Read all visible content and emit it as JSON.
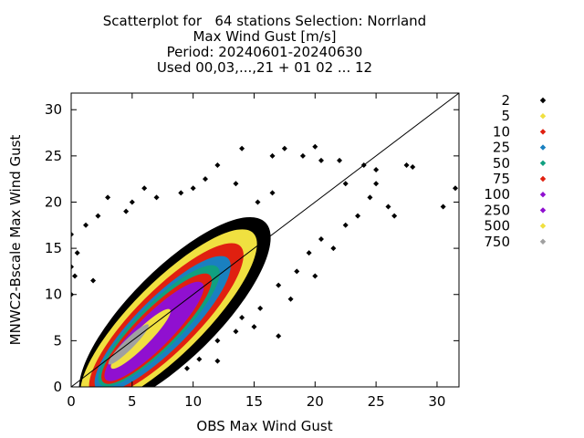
{
  "chart_data": {
    "type": "scatter",
    "title_lines": [
      "Scatterplot for   64 stations Selection: Norrland",
      "Max Wind Gust [m/s]",
      "Period: 20240601-20240630",
      "Used 00,03,...,21 + 01 02 ... 12"
    ],
    "xlabel": "OBS Max Wind Gust",
    "ylabel": "MNWC2-Bscale Max Wind Gust",
    "xlim": [
      0,
      31.8
    ],
    "ylim": [
      0,
      31.8
    ],
    "xticks": [
      "0",
      "5",
      "10",
      "15",
      "20",
      "25",
      "30"
    ],
    "yticks": [
      "0",
      "5",
      "10",
      "15",
      "20",
      "25",
      "30"
    ],
    "diagonal_line": true,
    "grid": false,
    "legend_position": "right",
    "legend": [
      {
        "label": "2",
        "color": "#000000"
      },
      {
        "label": "5",
        "color": "#f0e040"
      },
      {
        "label": "10",
        "color": "#e02010"
      },
      {
        "label": "25",
        "color": "#1a80c0"
      },
      {
        "label": "50",
        "color": "#10a080"
      },
      {
        "label": "75",
        "color": "#e02010"
      },
      {
        "label": "100",
        "color": "#9010d0"
      },
      {
        "label": "250",
        "color": "#9010d0"
      },
      {
        "label": "500",
        "color": "#f0e040"
      },
      {
        "label": "750",
        "color": "#a0a0a0"
      }
    ],
    "density_layers": [
      {
        "class": "2",
        "center": [
          8.5,
          8.0
        ],
        "half_axes": [
          10.5,
          4.8
        ],
        "angle": 45
      },
      {
        "class": "5",
        "center": [
          8.0,
          7.5
        ],
        "half_axes": [
          9.8,
          3.9
        ],
        "angle": 45
      },
      {
        "class": "10",
        "center": [
          7.8,
          7.2
        ],
        "half_axes": [
          8.6,
          3.3
        ],
        "angle": 45
      },
      {
        "class": "25",
        "center": [
          7.5,
          6.8
        ],
        "half_axes": [
          7.6,
          2.8
        ],
        "angle": 45
      },
      {
        "class": "50",
        "center": [
          7.2,
          6.6
        ],
        "half_axes": [
          6.8,
          2.4
        ],
        "angle": 45
      },
      {
        "class": "75",
        "center": [
          7.0,
          6.3
        ],
        "half_axes": [
          6.2,
          2.1
        ],
        "angle": 45
      },
      {
        "class": "100",
        "center": [
          6.8,
          6.0
        ],
        "half_axes": [
          5.6,
          1.8
        ],
        "angle": 45
      },
      {
        "class": "250",
        "center": [
          6.3,
          5.7
        ],
        "half_axes": [
          4.5,
          1.4
        ],
        "angle": 45
      },
      {
        "class": "500",
        "center": [
          5.7,
          5.2
        ],
        "half_axes": [
          3.4,
          0.9
        ],
        "angle": 45
      },
      {
        "class": "750",
        "center": [
          4.7,
          4.6
        ],
        "half_axes": [
          2.3,
          0.55
        ],
        "angle": 45
      }
    ],
    "outlier_points": [
      [
        20,
        26
      ],
      [
        17.5,
        25.8
      ],
      [
        14,
        25.8
      ],
      [
        16.5,
        25
      ],
      [
        19,
        25
      ],
      [
        20.5,
        24.5
      ],
      [
        22,
        24.5
      ],
      [
        24,
        24
      ],
      [
        25,
        23.5
      ],
      [
        27.5,
        24
      ],
      [
        28,
        23.8
      ],
      [
        31.5,
        21.5
      ],
      [
        30.5,
        19.5
      ],
      [
        22.5,
        22
      ],
      [
        25,
        22
      ],
      [
        24.5,
        20.5
      ],
      [
        26,
        19.5
      ],
      [
        26.5,
        18.5
      ],
      [
        23.5,
        18.5
      ],
      [
        22.5,
        17.5
      ],
      [
        20.5,
        16
      ],
      [
        19.5,
        14.5
      ],
      [
        21.5,
        15
      ],
      [
        18.5,
        12.5
      ],
      [
        20,
        12
      ],
      [
        17,
        11
      ],
      [
        18,
        9.5
      ],
      [
        15.5,
        8.5
      ],
      [
        14,
        7.5
      ],
      [
        13.5,
        6
      ],
      [
        15,
        6.5
      ],
      [
        12,
        5
      ],
      [
        17,
        5.5
      ],
      [
        10.5,
        3
      ],
      [
        9.5,
        2
      ],
      [
        12,
        2.8
      ],
      [
        3,
        20.5
      ],
      [
        5,
        20
      ],
      [
        7,
        20.5
      ],
      [
        9,
        21
      ],
      [
        10,
        21.5
      ],
      [
        11,
        22.5
      ],
      [
        12,
        24
      ],
      [
        13.5,
        22
      ],
      [
        2.2,
        18.5
      ],
      [
        1.2,
        17.5
      ],
      [
        0,
        16.5
      ],
      [
        0.5,
        14.5
      ],
      [
        0,
        13
      ],
      [
        0.3,
        12
      ],
      [
        1.8,
        11.5
      ],
      [
        0,
        10
      ],
      [
        15.3,
        20
      ],
      [
        16.5,
        21
      ],
      [
        4.5,
        19
      ],
      [
        6,
        21.5
      ]
    ]
  }
}
